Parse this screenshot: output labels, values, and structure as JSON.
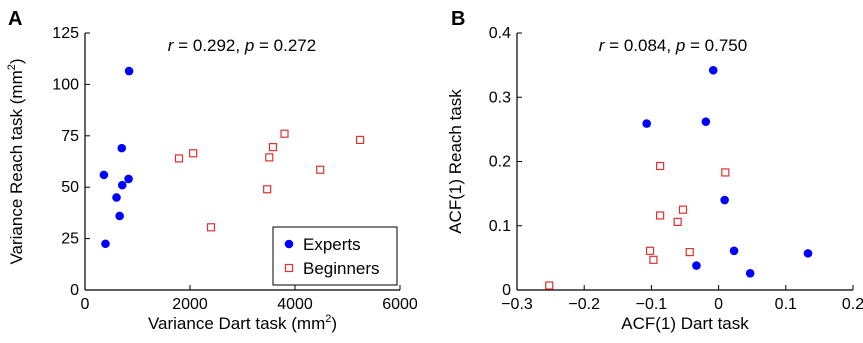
{
  "chart_data": [
    {
      "type": "scatter",
      "panel_label": "A",
      "annotation": {
        "r_symbol": "r",
        "r_text": " = 0.292,  ",
        "p_symbol": "p",
        "p_text": " = 0.272"
      },
      "xlabel": {
        "main": "Variance Dart task (mm",
        "sup": "2",
        "end": ")"
      },
      "ylabel": {
        "main": "Variance Reach task (mm",
        "sup": "2",
        "end": ")"
      },
      "xlim": [
        0,
        6000
      ],
      "ylim": [
        0,
        125
      ],
      "xticks": [
        0,
        2000,
        4000,
        6000
      ],
      "yticks": [
        0,
        25,
        50,
        75,
        100,
        125
      ],
      "legend_position": "bottom-right",
      "series": [
        {
          "name": "Experts",
          "marker": "filled-circle",
          "color": "#0000ff",
          "x": [
            360,
            390,
            600,
            660,
            710,
            700,
            830,
            840
          ],
          "y": [
            56,
            22.5,
            45,
            36,
            51,
            69,
            54,
            106.5
          ]
        },
        {
          "name": "Beginners",
          "marker": "open-square",
          "color": "#e03030",
          "x": [
            1790,
            2060,
            2400,
            3470,
            3510,
            3580,
            3800,
            4480,
            5240
          ],
          "y": [
            64,
            66.5,
            30.5,
            49,
            64.5,
            69.5,
            76,
            58.5,
            73
          ]
        }
      ]
    },
    {
      "type": "scatter",
      "panel_label": "B",
      "annotation": {
        "r_symbol": "r",
        "r_text": " = 0.084,  ",
        "p_symbol": "p",
        "p_text": " = 0.750"
      },
      "xlabel": {
        "main": "ACF(1) Dart task",
        "sup": "",
        "end": ""
      },
      "ylabel": {
        "main": "ACF(1) Reach task",
        "sup": "",
        "end": ""
      },
      "xlim": [
        -0.3,
        0.2
      ],
      "ylim": [
        0,
        0.4
      ],
      "xticks": [
        -0.3,
        -0.2,
        -0.1,
        0,
        0.1,
        0.2
      ],
      "yticks": [
        0,
        0.1,
        0.2,
        0.3,
        0.4
      ],
      "series": [
        {
          "name": "Experts",
          "marker": "filled-circle",
          "color": "#0000ff",
          "x": [
            -0.107,
            -0.019,
            -0.008,
            0.009,
            -0.033,
            0.023,
            0.047,
            0.133
          ],
          "y": [
            0.259,
            0.262,
            0.342,
            0.14,
            0.038,
            0.061,
            0.026,
            0.057
          ]
        },
        {
          "name": "Beginners",
          "marker": "open-square",
          "color": "#e03030",
          "x": [
            -0.252,
            -0.102,
            -0.097,
            -0.087,
            -0.087,
            -0.061,
            -0.053,
            -0.043,
            0.01
          ],
          "y": [
            0.007,
            0.061,
            0.047,
            0.193,
            0.116,
            0.106,
            0.125,
            0.059,
            0.183
          ]
        }
      ]
    }
  ]
}
